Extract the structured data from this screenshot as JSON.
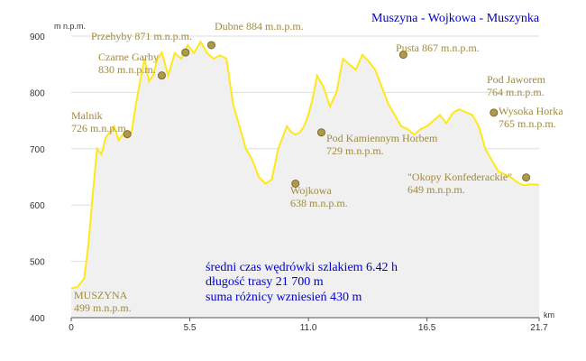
{
  "title": "Muszyna - Wojkowa - Muszynka",
  "info_lines": [
    "średni czas wędrówki szlakiem 6.42 h",
    "długość trasy 21 700 m",
    "suma różnicy wzniesień 430 m"
  ],
  "colors": {
    "line": "#ffe81a",
    "fill": "#f0f0f0",
    "marker": "#b09a4a",
    "annotation": "#a08a3c",
    "title": "#0000cc",
    "grid": "#dddddd"
  },
  "chart_data": {
    "type": "area",
    "xlabel": "km",
    "ylabel": "m n.p.m.",
    "xlim": [
      0,
      21.7
    ],
    "ylim": [
      400,
      900
    ],
    "x_ticks": [
      "0",
      "5.5",
      "11.0",
      "16.5",
      "21.7"
    ],
    "y_ticks": [
      "400",
      "500",
      "600",
      "700",
      "800",
      "900"
    ],
    "grid": true,
    "series": [
      {
        "x": [
          0,
          0.3,
          0.6,
          0.8,
          1.0,
          1.2,
          1.4,
          1.6,
          1.8,
          2.0,
          2.2,
          2.4,
          2.6,
          2.8,
          3.0,
          3.2,
          3.4,
          3.6,
          3.8,
          4.0,
          4.2,
          4.5,
          4.8,
          5.1,
          5.4,
          5.7,
          6.0,
          6.3,
          6.6,
          6.9,
          7.2,
          7.5,
          7.8,
          8.1,
          8.4,
          8.7,
          9.0,
          9.3,
          9.6,
          9.8,
          10.0,
          10.2,
          10.4,
          10.6,
          10.8,
          11.0,
          11.2,
          11.4,
          11.7,
          12.0,
          12.3,
          12.6,
          12.9,
          13.2,
          13.5,
          13.8,
          14.1,
          14.4,
          14.7,
          15.0,
          15.3,
          15.6,
          15.9,
          16.2,
          16.5,
          16.8,
          17.1,
          17.4,
          17.7,
          18.0,
          18.3,
          18.6,
          18.9,
          19.2,
          19.5,
          19.8,
          20.1,
          20.4,
          20.7,
          21.0,
          21.3,
          21.7
        ],
        "y": [
          452,
          455,
          470,
          530,
          620,
          700,
          690,
          720,
          730,
          740,
          715,
          726,
          720,
          730,
          780,
          820,
          860,
          820,
          830,
          860,
          871,
          830,
          870,
          860,
          884,
          870,
          890,
          870,
          860,
          866,
          860,
          780,
          740,
          700,
          680,
          650,
          638,
          645,
          700,
          720,
          740,
          730,
          725,
          729,
          740,
          760,
          790,
          830,
          810,
          775,
          800,
          860,
          850,
          840,
          867,
          855,
          840,
          810,
          780,
          760,
          740,
          735,
          725,
          735,
          740,
          750,
          760,
          745,
          764,
          770,
          765,
          760,
          740,
          700,
          680,
          660,
          655,
          649,
          640,
          635,
          637,
          636
        ]
      }
    ],
    "annotations": [
      {
        "name": "MUSZYNA",
        "elev": "499 m.n.p.m.",
        "x": 0.3,
        "y": 499,
        "marker": false
      },
      {
        "name": "Malnik",
        "elev": "726 m.n.p.m.",
        "x": 2.6,
        "y": 726,
        "marker": true
      },
      {
        "name": "Czarne Garby",
        "elev": "830 m.n.p.m.",
        "x": 4.2,
        "y": 830,
        "marker": true
      },
      {
        "name": "Przehyby 871 m.n.p.m.",
        "elev": "",
        "x": 5.3,
        "y": 871,
        "marker": true
      },
      {
        "name": "Dubne 884 m.n.p.m.",
        "elev": "",
        "x": 6.5,
        "y": 884,
        "marker": true
      },
      {
        "name": "Wojkowa",
        "elev": "638 m.n.p.m.",
        "x": 10.4,
        "y": 638,
        "marker": true
      },
      {
        "name": "Pod Kamiennym Horbem",
        "elev": "729 m.n.p.m.",
        "x": 11.6,
        "y": 729,
        "marker": true
      },
      {
        "name": "Pusta 867 m.n.p.m.",
        "elev": "",
        "x": 15.4,
        "y": 867,
        "marker": true
      },
      {
        "name": "Pod Jaworem",
        "elev": "764 m.n.p.m.",
        "x": 19.6,
        "y": 764,
        "marker": true
      },
      {
        "name": "Wysoka Horka",
        "elev": "765 m.n.p.m.",
        "x": 19.6,
        "y": 765,
        "marker": false
      },
      {
        "name": "\"Okopy Konfederackie\"",
        "elev": "649 m.n.p.m.",
        "x": 21.1,
        "y": 649,
        "marker": true
      }
    ]
  }
}
